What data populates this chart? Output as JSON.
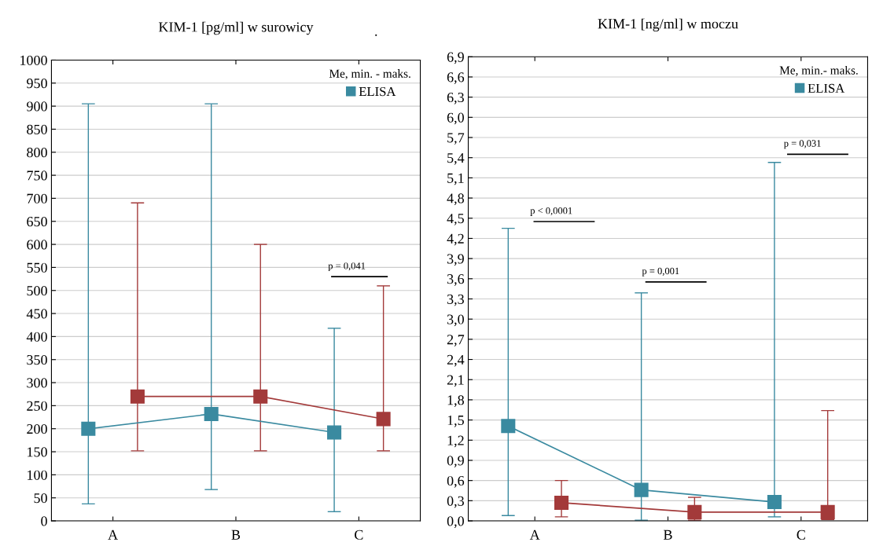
{
  "chart_data": [
    {
      "type": "line",
      "title": "KIM-1 [pg/ml] w surowicy",
      "categories": [
        "A",
        "B",
        "C"
      ],
      "series": [
        {
          "name": "ELISA",
          "color": "#3a8aa0",
          "values": [
            200,
            232,
            192
          ],
          "errors": [
            [
              37,
              905
            ],
            [
              68,
              905
            ],
            [
              20,
              418
            ]
          ]
        },
        {
          "color": "#a33a3a",
          "values": [
            270,
            270,
            221
          ],
          "errors": [
            [
              152,
              690
            ],
            [
              152,
              600
            ],
            [
              152,
              510
            ]
          ]
        }
      ],
      "legend_title": "Me, min. - maks.",
      "legend": "top right",
      "marker": "square",
      "line_style": "solid",
      "grid": "y",
      "ylim": [
        0,
        1000
      ],
      "yticks": [
        0,
        50,
        100,
        150,
        200,
        250,
        300,
        350,
        400,
        450,
        500,
        550,
        600,
        650,
        700,
        750,
        800,
        850,
        900,
        950,
        1000
      ],
      "annotations": [
        "p = 0,041",
        "."
      ]
    },
    {
      "type": "line",
      "title": "KIM-1 [ng/ml] w moczu",
      "categories": [
        "A",
        "B",
        "C"
      ],
      "series": [
        {
          "name": "ELISA",
          "color": "#3a8aa0",
          "values": [
            1.41,
            0.46,
            0.28
          ],
          "errors": [
            [
              0.08,
              4.35
            ],
            [
              0.01,
              3.39
            ],
            [
              0.06,
              5.33
            ]
          ]
        },
        {
          "color": "#a33a3a",
          "values": [
            0.27,
            0.13,
            0.13
          ],
          "errors": [
            [
              0.06,
              0.6
            ],
            [
              0.01,
              0.35
            ],
            [
              0.02,
              1.64
            ]
          ]
        }
      ],
      "legend_title": "Me, min.- maks.",
      "legend": "top right",
      "marker": "square",
      "line_style": "solid",
      "grid": "y",
      "ylim": [
        0,
        6.9
      ],
      "yticks": [
        {
          "value": 0,
          "label": "0,0"
        },
        {
          "value": 0.3,
          "label": "0,3"
        },
        {
          "value": 0.6,
          "label": "0,6"
        },
        {
          "value": 0.9,
          "label": "0,9"
        },
        {
          "value": 1.2,
          "label": "1,2"
        },
        {
          "value": 1.5,
          "label": "1,5"
        },
        {
          "value": 1.8,
          "label": "1,8"
        },
        {
          "value": 2.1,
          "label": "2,1"
        },
        {
          "value": 2.4,
          "label": "2,4"
        },
        {
          "value": 2.7,
          "label": "2,7"
        },
        {
          "value": 3.0,
          "label": "3,0"
        },
        {
          "value": 3.3,
          "label": "3,3"
        },
        {
          "value": 3.6,
          "label": "3,6"
        },
        {
          "value": 3.9,
          "label": "3,9"
        },
        {
          "value": 4.2,
          "label": "4,2"
        },
        {
          "value": 4.5,
          "label": "4,5"
        },
        {
          "value": 4.8,
          "label": "4,8"
        },
        {
          "value": 5.1,
          "label": "5,1"
        },
        {
          "value": 5.4,
          "label": "5,4"
        },
        {
          "value": 5.7,
          "label": "5,7"
        },
        {
          "value": 6.0,
          "label": "6,0"
        },
        {
          "value": 6.3,
          "label": "6,3"
        },
        {
          "value": 6.6,
          "label": "6,6"
        },
        {
          "value": 6.9,
          "label": "6,9"
        }
      ],
      "annotations": [
        "p < 0,0001",
        "p = 0,001",
        "p = 0,031"
      ]
    }
  ]
}
